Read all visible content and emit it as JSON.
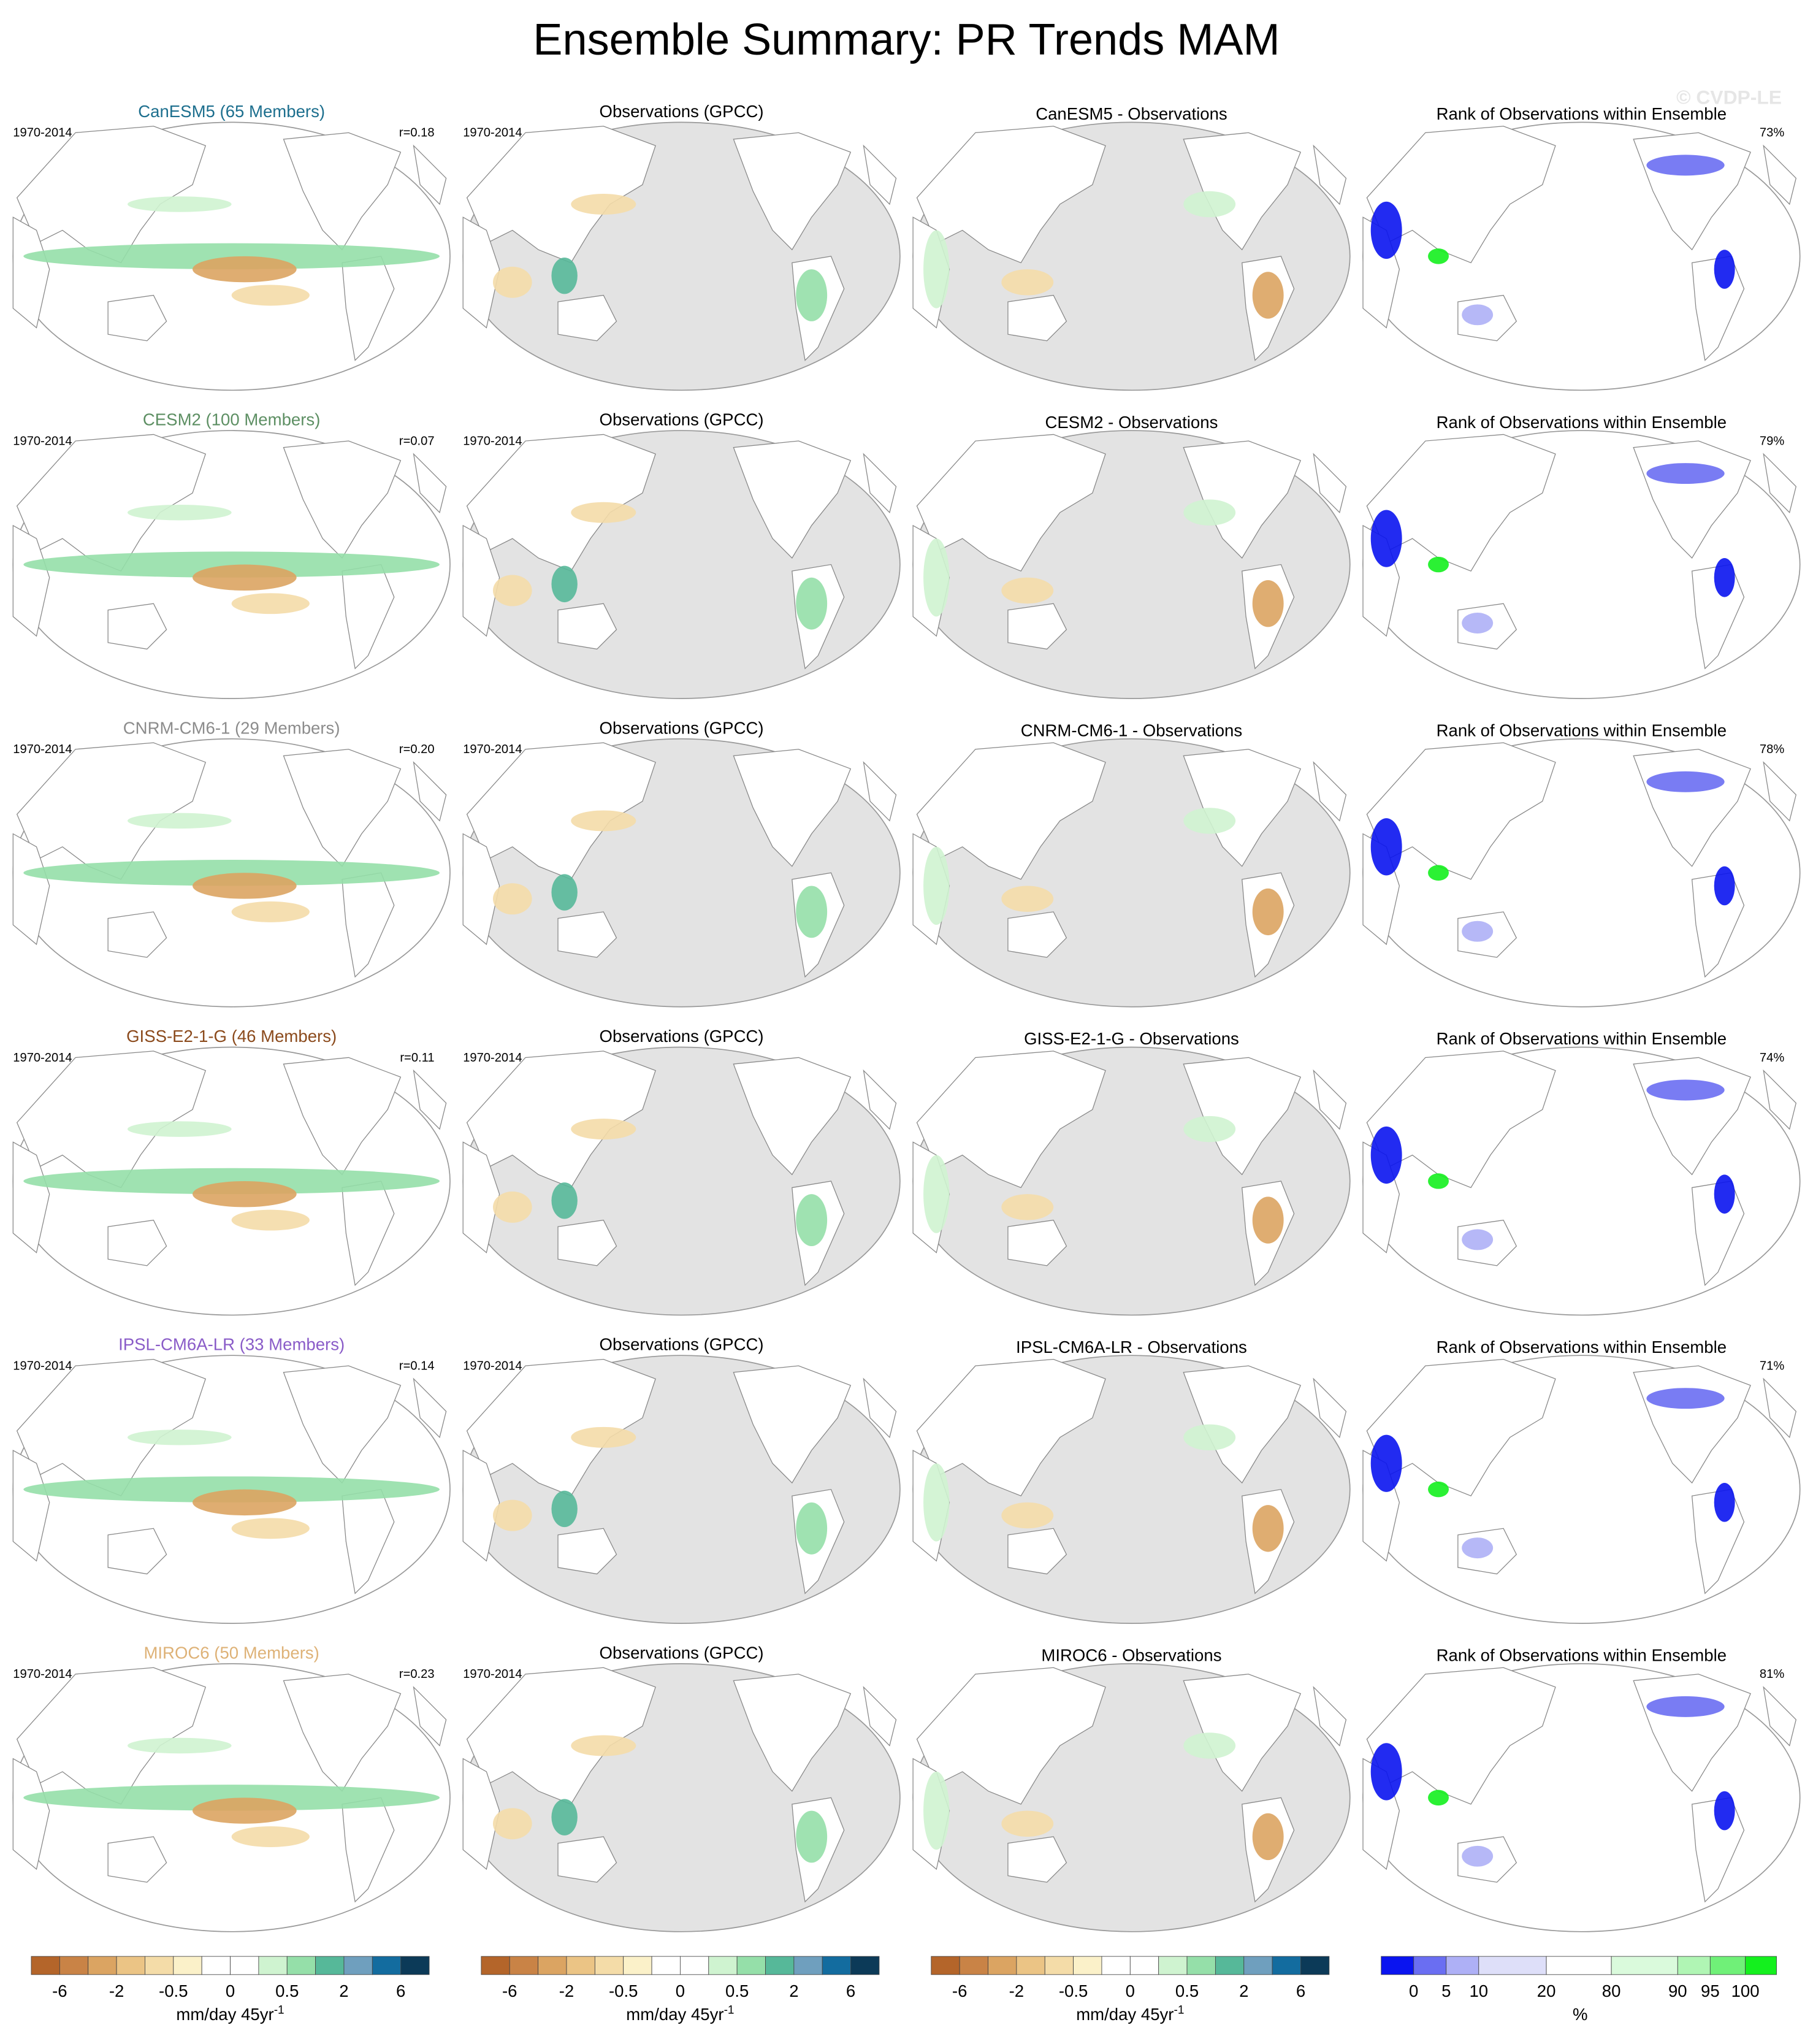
{
  "title": "Ensemble Summary: PR Trends MAM",
  "watermark": "© CVDP-LE",
  "rows": [
    {
      "model": "CanESM5 (65 Members)",
      "model_color": "#1d6f8e",
      "period": "1970-2014",
      "r": "r=0.18",
      "obs_title": "Observations (GPCC)",
      "obs_period": "1970-2014",
      "diff_title": "CanESM5 - Observations",
      "rank_title": "Rank of Observations within Ensemble",
      "rank_pct": "73%"
    },
    {
      "model": "CESM2 (100 Members)",
      "model_color": "#5d8f63",
      "period": "1970-2014",
      "r": "r=0.07",
      "obs_title": "Observations (GPCC)",
      "obs_period": "1970-2014",
      "diff_title": "CESM2 - Observations",
      "rank_title": "Rank of Observations within Ensemble",
      "rank_pct": "79%"
    },
    {
      "model": "CNRM-CM6-1 (29 Members)",
      "model_color": "#8c8c8c",
      "period": "1970-2014",
      "r": "r=0.20",
      "obs_title": "Observations (GPCC)",
      "obs_period": "1970-2014",
      "diff_title": "CNRM-CM6-1 - Observations",
      "rank_title": "Rank of Observations within Ensemble",
      "rank_pct": "78%"
    },
    {
      "model": "GISS-E2-1-G (46 Members)",
      "model_color": "#8b4a1c",
      "period": "1970-2014",
      "r": "r=0.11",
      "obs_title": "Observations (GPCC)",
      "obs_period": "1970-2014",
      "diff_title": "GISS-E2-1-G - Observations",
      "rank_title": "Rank of Observations within Ensemble",
      "rank_pct": "74%"
    },
    {
      "model": "IPSL-CM6A-LR (33 Members)",
      "model_color": "#8a5cc8",
      "period": "1970-2014",
      "r": "r=0.14",
      "obs_title": "Observations (GPCC)",
      "obs_period": "1970-2014",
      "diff_title": "IPSL-CM6A-LR - Observations",
      "rank_title": "Rank of Observations within Ensemble",
      "rank_pct": "71%"
    },
    {
      "model": "MIROC6 (50 Members)",
      "model_color": "#deb277",
      "period": "1970-2014",
      "r": "r=0.23",
      "obs_title": "Observations (GPCC)",
      "obs_period": "1970-2014",
      "diff_title": "MIROC6 - Observations",
      "rank_title": "Rank of Observations within Ensemble",
      "rank_pct": "81%"
    }
  ],
  "colorbars": [
    {
      "labels": [
        "-6",
        "-2",
        "-0.5",
        "0",
        "0.5",
        "2",
        "6"
      ],
      "unit": "mm/day 45yr",
      "unit_sup": "-1",
      "colors": [
        "#b4652a",
        "#c98346",
        "#dba462",
        "#ebc485",
        "#f4dca8",
        "#fbf1c9",
        "#ffffff",
        "#ffffff",
        "#cff3d0",
        "#95dfa9",
        "#56b899",
        "#6f9fbe",
        "#136c9f",
        "#0c3a58"
      ]
    },
    {
      "labels": [
        "-6",
        "-2",
        "-0.5",
        "0",
        "0.5",
        "2",
        "6"
      ],
      "unit": "mm/day 45yr",
      "unit_sup": "-1",
      "colors": [
        "#b4652a",
        "#c98346",
        "#dba462",
        "#ebc485",
        "#f4dca8",
        "#fbf1c9",
        "#ffffff",
        "#ffffff",
        "#cff3d0",
        "#95dfa9",
        "#56b899",
        "#6f9fbe",
        "#136c9f",
        "#0c3a58"
      ]
    },
    {
      "labels": [
        "-6",
        "-2",
        "-0.5",
        "0",
        "0.5",
        "2",
        "6"
      ],
      "unit": "mm/day 45yr",
      "unit_sup": "-1",
      "colors": [
        "#b4652a",
        "#c98346",
        "#dba462",
        "#ebc485",
        "#f4dca8",
        "#fbf1c9",
        "#ffffff",
        "#ffffff",
        "#cff3d0",
        "#95dfa9",
        "#56b899",
        "#6f9fbe",
        "#136c9f",
        "#0c3a58"
      ]
    },
    {
      "labels": [
        "0",
        "5",
        "10",
        "20",
        "80",
        "90",
        "95",
        "100"
      ],
      "unit": "%",
      "colors": [
        "#0a14f0",
        "#6a6ef2",
        "#aeb0f6",
        "#dedff9",
        "#ffffff",
        "#dafadc",
        "#b0f5b4",
        "#70f078",
        "#14f01e"
      ]
    }
  ]
}
